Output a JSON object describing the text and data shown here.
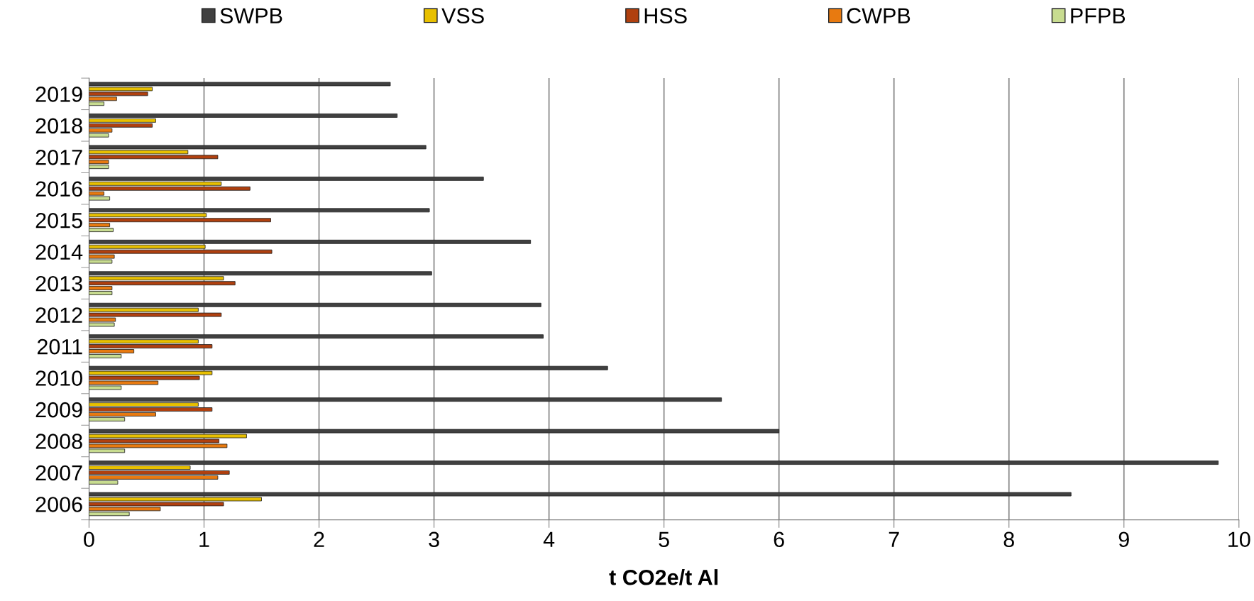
{
  "chart_data": {
    "type": "bar",
    "orientation": "horizontal",
    "xlabel": "t CO2e/t Al",
    "categories": [
      "2019",
      "2018",
      "2017",
      "2016",
      "2015",
      "2014",
      "2013",
      "2012",
      "2011",
      "2010",
      "2009",
      "2008",
      "2007",
      "2006"
    ],
    "series": [
      {
        "name": "SWPB",
        "color": "#404040",
        "values": [
          2.62,
          2.68,
          2.93,
          3.43,
          2.96,
          3.84,
          2.98,
          3.93,
          3.95,
          4.51,
          5.5,
          6.0,
          9.82,
          8.54
        ]
      },
      {
        "name": "VSS",
        "color": "#e8c000",
        "values": [
          0.55,
          0.58,
          0.86,
          1.15,
          1.02,
          1.01,
          1.17,
          0.95,
          0.95,
          1.07,
          0.95,
          1.37,
          0.88,
          1.5
        ]
      },
      {
        "name": "HSS",
        "color": "#b0400f",
        "values": [
          0.51,
          0.55,
          1.12,
          1.4,
          1.58,
          1.59,
          1.27,
          1.15,
          1.07,
          0.96,
          1.07,
          1.13,
          1.22,
          1.17
        ]
      },
      {
        "name": "CWPB",
        "color": "#e87a10",
        "values": [
          0.24,
          0.2,
          0.17,
          0.13,
          0.18,
          0.22,
          0.2,
          0.23,
          0.39,
          0.6,
          0.58,
          1.2,
          1.12,
          0.62
        ]
      },
      {
        "name": "PFPB",
        "color": "#c8dc90",
        "values": [
          0.13,
          0.17,
          0.17,
          0.18,
          0.21,
          0.2,
          0.2,
          0.22,
          0.28,
          0.28,
          0.31,
          0.31,
          0.25,
          0.35
        ]
      }
    ],
    "xlim": [
      0,
      10
    ],
    "xticks": [
      0,
      1,
      2,
      3,
      4,
      5,
      6,
      7,
      8,
      9,
      10
    ],
    "grid": "x",
    "legend": "top"
  }
}
